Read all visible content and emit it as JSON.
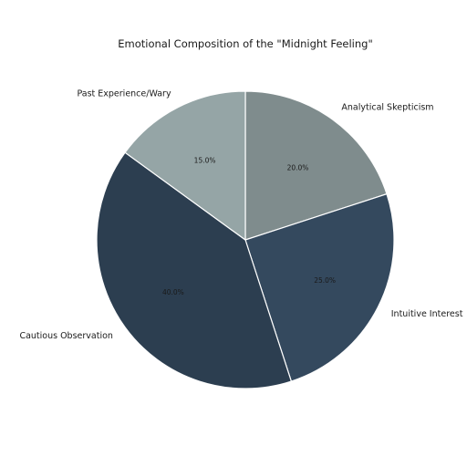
{
  "chart_data": {
    "type": "pie",
    "title": "Emotional Composition of the \"Midnight Feeling\"",
    "start_angle_deg": 90,
    "direction": "clockwise",
    "slices": [
      {
        "label": "Analytical Skepticism",
        "value": 20.0,
        "pct_label": "20.0%",
        "color": "#7f8c8d"
      },
      {
        "label": "Intuitive Interest",
        "value": 25.0,
        "pct_label": "25.0%",
        "color": "#34495e"
      },
      {
        "label": "Cautious Observation",
        "value": 40.0,
        "pct_label": "40.0%",
        "color": "#2c3e50"
      },
      {
        "label": "Past Experience/Wary",
        "value": 15.0,
        "pct_label": "15.0%",
        "color": "#95a5a6"
      }
    ],
    "edge_color": "#ffffff"
  }
}
